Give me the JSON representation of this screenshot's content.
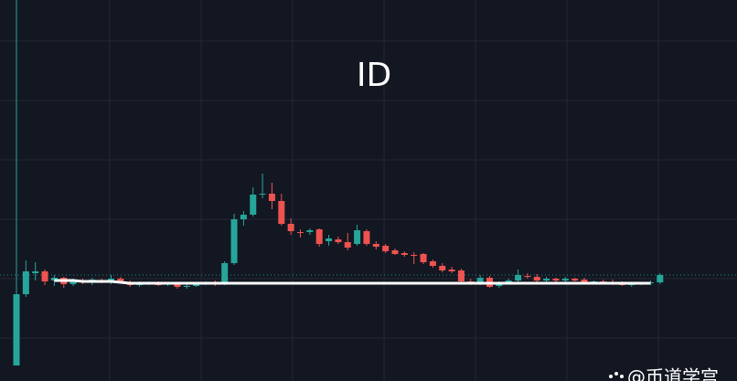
{
  "chart_data": {
    "type": "candlestick",
    "title": "ID",
    "watermark": "@币道学宫",
    "up_color": "#26a69a",
    "down_color": "#ef5350",
    "ma_color": "#ffffff",
    "ylim": [
      0,
      417
    ],
    "open": [
      17,
      95,
      118,
      120,
      110,
      113,
      106,
      109,
      108,
      110,
      109,
      112,
      108,
      105,
      107,
      108,
      106,
      106,
      103,
      104,
      107,
      108,
      107,
      129,
      177,
      182,
      204,
      205,
      197,
      172,
      163,
      163,
      166,
      153,
      155,
      152,
      150,
      164,
      150,
      148,
      143,
      140,
      138,
      139,
      131,
      126,
      122,
      121,
      109,
      107,
      113,
      104,
      108,
      110,
      115,
      114,
      110,
      112,
      110,
      112,
      111,
      108,
      109,
      108,
      107,
      105,
      106,
      107,
      108
    ],
    "high": [
      417,
      132,
      130,
      122,
      116,
      114,
      112,
      112,
      113,
      112,
      116,
      114,
      110,
      109,
      109,
      109,
      108,
      108,
      106,
      108,
      109,
      110,
      131,
      183,
      186,
      212,
      227,
      217,
      205,
      178,
      166,
      167,
      167,
      160,
      158,
      162,
      171,
      166,
      153,
      150,
      145,
      142,
      141,
      140,
      133,
      129,
      125,
      123,
      112,
      116,
      115,
      109,
      112,
      122,
      118,
      117,
      114,
      113,
      114,
      113,
      113,
      110,
      111,
      111,
      109,
      108,
      108,
      110,
      118
    ],
    "low": [
      17,
      92,
      110,
      105,
      104,
      102,
      104,
      106,
      105,
      107,
      106,
      107,
      103,
      103,
      105,
      104,
      104,
      101,
      101,
      103,
      105,
      104,
      105,
      127,
      170,
      180,
      200,
      188,
      170,
      160,
      157,
      160,
      147,
      148,
      150,
      143,
      148,
      148,
      144,
      140,
      138,
      136,
      128,
      128,
      124,
      119,
      118,
      108,
      105,
      105,
      102,
      102,
      106,
      108,
      112,
      108,
      107,
      108,
      108,
      109,
      107,
      106,
      107,
      105,
      104,
      103,
      105,
      105,
      106
    ],
    "close": [
      95,
      120,
      120,
      109,
      113,
      106,
      110,
      108,
      111,
      109,
      112,
      108,
      105,
      107,
      108,
      105,
      107,
      103,
      104,
      107,
      108,
      106,
      129,
      177,
      182,
      204,
      205,
      197,
      172,
      164,
      162,
      165,
      150,
      156,
      152,
      146,
      165,
      150,
      147,
      142,
      139,
      138,
      137,
      130,
      126,
      121,
      120,
      109,
      108,
      113,
      103,
      108,
      110,
      116,
      114,
      110,
      112,
      110,
      112,
      110,
      108,
      109,
      108,
      107,
      105,
      106,
      107,
      108,
      116
    ],
    "ma": [
      null,
      null,
      null,
      null,
      110,
      110,
      110,
      109,
      109,
      109,
      109,
      108,
      107,
      107,
      107,
      107,
      107,
      107,
      107,
      107,
      107,
      107,
      107,
      107,
      107,
      107,
      107,
      107,
      107,
      107,
      107,
      107,
      107,
      107,
      107,
      107,
      107,
      107,
      107,
      107,
      107,
      107,
      107,
      107,
      107,
      107,
      107,
      107,
      107,
      107,
      107,
      107,
      107,
      107,
      107,
      107,
      107,
      107,
      107,
      107,
      107,
      107,
      107,
      107,
      107,
      107,
      107,
      107,
      null
    ]
  }
}
